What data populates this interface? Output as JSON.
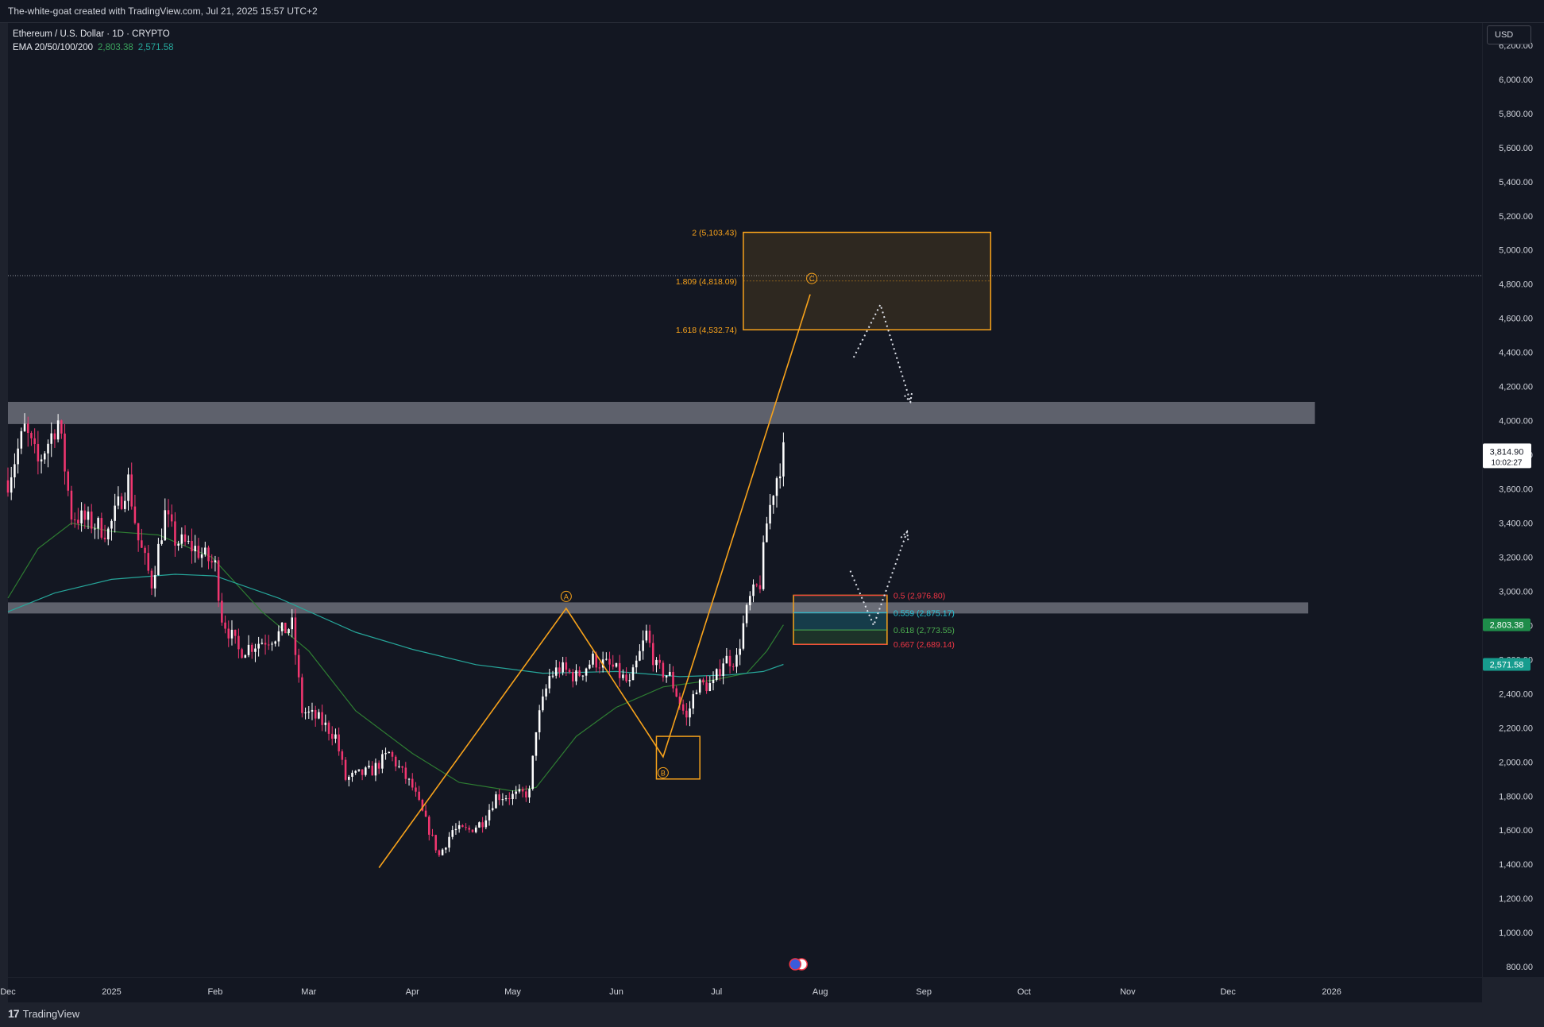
{
  "header": {
    "attribution": "The-white-goat created with TradingView.com, Jul 21, 2025 15:57 UTC+2"
  },
  "legend": {
    "symbol": "Ethereum / U.S. Dollar · 1D · CRYPTO",
    "ema_label": "EMA 20/50/100/200",
    "ema_value_1": "2,803.38",
    "ema_value_2": "2,571.58"
  },
  "toolbar": {
    "currency": "USD"
  },
  "footer": {
    "brand": "TradingView"
  },
  "colors": {
    "background": "#131722",
    "bull": "#ffffff",
    "bear": "#f23670",
    "wave": "#f7a21b",
    "zone": "#787b86",
    "ema_fast": "#2e7d32",
    "ema_slow": "#26a69a",
    "fib_red": "#f23645",
    "fib_teal": "#26c6da",
    "fib_green": "#4caf50"
  },
  "chart_data": {
    "type": "candlestick",
    "symbol": "ETHUSD",
    "y_axis": {
      "ticks": [
        800,
        1000,
        1200,
        1400,
        1600,
        1800,
        2000,
        2200,
        2400,
        2600,
        2800,
        3000,
        3200,
        3400,
        3600,
        3800,
        4000,
        4200,
        4400,
        4600,
        4800,
        5000,
        5200,
        5400,
        5600,
        5800,
        6000,
        6200
      ],
      "tick_labels": [
        "800.00",
        "1,000.00",
        "1,200.00",
        "1,400.00",
        "1,600.00",
        "1,800.00",
        "2,000.00",
        "2,200.00",
        "2,400.00",
        "2,600.00",
        "2,800.00",
        "3,000.00",
        "3,200.00",
        "3,400.00",
        "3,600.00",
        "3,800.00",
        "4,000.00",
        "4,200.00",
        "4,400.00",
        "4,600.00",
        "4,800.00",
        "5,000.00",
        "5,200.00",
        "5,400.00",
        "5,600.00",
        "5,800.00",
        "6,000.00",
        "6,200.00"
      ],
      "range": [
        740,
        6330
      ]
    },
    "x_axis": {
      "range": [
        "2024-12-01",
        "2026-02-15"
      ],
      "ticks": [
        {
          "date": "2024-12-01",
          "label": "Dec"
        },
        {
          "date": "2025-01-01",
          "label": "2025"
        },
        {
          "date": "2025-02-01",
          "label": "Feb"
        },
        {
          "date": "2025-03-01",
          "label": "Mar"
        },
        {
          "date": "2025-04-01",
          "label": "Apr"
        },
        {
          "date": "2025-05-01",
          "label": "May"
        },
        {
          "date": "2025-06-01",
          "label": "Jun"
        },
        {
          "date": "2025-07-01",
          "label": "Jul"
        },
        {
          "date": "2025-08-01",
          "label": "Aug"
        },
        {
          "date": "2025-09-01",
          "label": "Sep"
        },
        {
          "date": "2025-10-01",
          "label": "Oct"
        },
        {
          "date": "2025-11-01",
          "label": "Nov"
        },
        {
          "date": "2025-12-01",
          "label": "Dec"
        },
        {
          "date": "2026-01-01",
          "label": "2026"
        }
      ]
    },
    "price_path": [
      [
        "2024-12-01",
        3650
      ],
      [
        "2024-12-06",
        3950
      ],
      [
        "2024-12-10",
        3750
      ],
      [
        "2024-12-16",
        4000
      ],
      [
        "2024-12-20",
        3450
      ],
      [
        "2024-12-26",
        3400
      ],
      [
        "2024-12-31",
        3350
      ],
      [
        "2025-01-06",
        3650
      ],
      [
        "2025-01-09",
        3300
      ],
      [
        "2025-01-13",
        3050
      ],
      [
        "2025-01-17",
        3450
      ],
      [
        "2025-01-20",
        3300
      ],
      [
        "2025-01-26",
        3250
      ],
      [
        "2025-02-01",
        3150
      ],
      [
        "2025-02-03",
        2850
      ],
      [
        "2025-02-08",
        2650
      ],
      [
        "2025-02-14",
        2700
      ],
      [
        "2025-02-20",
        2750
      ],
      [
        "2025-02-24",
        2800
      ],
      [
        "2025-02-27",
        2300
      ],
      [
        "2025-03-04",
        2250
      ],
      [
        "2025-03-09",
        2150
      ],
      [
        "2025-03-12",
        1900
      ],
      [
        "2025-03-20",
        1950
      ],
      [
        "2025-03-25",
        2050
      ],
      [
        "2025-04-01",
        1850
      ],
      [
        "2025-04-06",
        1600
      ],
      [
        "2025-04-09",
        1450
      ],
      [
        "2025-04-13",
        1600
      ],
      [
        "2025-04-18",
        1600
      ],
      [
        "2025-04-22",
        1650
      ],
      [
        "2025-04-26",
        1800
      ],
      [
        "2025-05-01",
        1800
      ],
      [
        "2025-05-06",
        1820
      ],
      [
        "2025-05-08",
        2200
      ],
      [
        "2025-05-12",
        2500
      ],
      [
        "2025-05-15",
        2550
      ],
      [
        "2025-05-20",
        2500
      ],
      [
        "2025-05-25",
        2600
      ],
      [
        "2025-05-31",
        2550
      ],
      [
        "2025-06-05",
        2450
      ],
      [
        "2025-06-10",
        2750
      ],
      [
        "2025-06-13",
        2550
      ],
      [
        "2025-06-17",
        2500
      ],
      [
        "2025-06-22",
        2250
      ],
      [
        "2025-06-25",
        2450
      ],
      [
        "2025-06-30",
        2450
      ],
      [
        "2025-07-03",
        2600
      ],
      [
        "2025-07-07",
        2600
      ],
      [
        "2025-07-09",
        2800
      ],
      [
        "2025-07-11",
        2950
      ],
      [
        "2025-07-14",
        3050
      ],
      [
        "2025-07-16",
        3400
      ],
      [
        "2025-07-18",
        3600
      ],
      [
        "2025-07-21",
        3815
      ]
    ],
    "ema_series": [
      {
        "values": [
          [
            "2024-12-01",
            2960
          ],
          [
            "2024-12-10",
            3250
          ],
          [
            "2024-12-20",
            3400
          ],
          [
            "2025-01-01",
            3350
          ],
          [
            "2025-01-15",
            3330
          ],
          [
            "2025-01-31",
            3200
          ],
          [
            "2025-02-15",
            2880
          ],
          [
            "2025-03-01",
            2650
          ],
          [
            "2025-03-15",
            2300
          ],
          [
            "2025-04-01",
            2050
          ],
          [
            "2025-04-15",
            1880
          ],
          [
            "2025-05-01",
            1830
          ],
          [
            "2025-05-08",
            1850
          ],
          [
            "2025-05-20",
            2150
          ],
          [
            "2025-06-01",
            2320
          ],
          [
            "2025-06-15",
            2440
          ],
          [
            "2025-06-30",
            2480
          ],
          [
            "2025-07-10",
            2520
          ],
          [
            "2025-07-16",
            2650
          ],
          [
            "2025-07-21",
            2803.38
          ]
        ]
      },
      {
        "values": [
          [
            "2024-12-01",
            2880
          ],
          [
            "2024-12-15",
            2990
          ],
          [
            "2025-01-01",
            3070
          ],
          [
            "2025-01-20",
            3100
          ],
          [
            "2025-02-01",
            3090
          ],
          [
            "2025-02-20",
            2960
          ],
          [
            "2025-03-15",
            2760
          ],
          [
            "2025-04-01",
            2660
          ],
          [
            "2025-04-20",
            2570
          ],
          [
            "2025-05-10",
            2520
          ],
          [
            "2025-06-01",
            2530
          ],
          [
            "2025-06-20",
            2500
          ],
          [
            "2025-07-05",
            2510
          ],
          [
            "2025-07-15",
            2530
          ],
          [
            "2025-07-21",
            2571.58
          ]
        ]
      }
    ],
    "last_price": {
      "value": 3814.9,
      "label": "3,814.90",
      "countdown": "10:02:27"
    },
    "price_line": {
      "value": 4850
    },
    "ema_tags": [
      {
        "value": 2803.38,
        "label": "2,803.38",
        "color": "#1e8c4a"
      },
      {
        "value": 2571.58,
        "label": "2,571.58",
        "color": "#179c8e"
      }
    ],
    "zones": [
      {
        "from": "2024-12-01",
        "to": "2025-12-27",
        "low": 3980,
        "high": 4110
      },
      {
        "from": "2024-12-01",
        "to": "2025-12-25",
        "low": 2870,
        "high": 2935
      }
    ],
    "wave": {
      "points": [
        {
          "date": "2025-03-22",
          "value": 1380
        },
        {
          "date": "2025-05-17",
          "value": 2900,
          "label": "A"
        },
        {
          "date": "2025-06-15",
          "value": 2030,
          "label": "B"
        },
        {
          "date": "2025-07-29",
          "value": 4740,
          "label": "C"
        }
      ]
    },
    "target_box": {
      "from": "2025-07-09",
      "to": "2025-09-21",
      "low": 4532.74,
      "high": 5103.43,
      "levels": [
        {
          "value": 5103.43,
          "label": "2 (5,103.43)"
        },
        {
          "value": 4818.09,
          "label": "1.809 (4,818.09)"
        },
        {
          "value": 4532.74,
          "label": "1.618 (4,532.74)"
        }
      ]
    },
    "b_box": {
      "from": "2025-06-13",
      "to": "2025-06-26",
      "low": 1900,
      "high": 2150
    },
    "retrace_box": {
      "from": "2025-07-24",
      "to": "2025-08-21",
      "low": 2689.14,
      "high": 2976.8,
      "levels": [
        {
          "value": 2976.8,
          "label": "0.5 (2,976.80)",
          "color": "#f23645"
        },
        {
          "value": 2875.17,
          "label": "0.559 (2,875.17)",
          "color": "#26c6da"
        },
        {
          "value": 2773.55,
          "label": "0.618 (2,773.55)",
          "color": "#4caf50"
        },
        {
          "value": 2689.14,
          "label": "0.667 (2,689.14)",
          "color": "#f23645"
        }
      ]
    },
    "projections": [
      [
        [
          "2025-08-11",
          4370
        ],
        [
          "2025-08-19",
          4680
        ],
        [
          "2025-08-28",
          4110
        ]
      ],
      [
        [
          "2025-08-10",
          3120
        ],
        [
          "2025-08-17",
          2800
        ],
        [
          "2025-08-27",
          3350
        ]
      ]
    ]
  }
}
